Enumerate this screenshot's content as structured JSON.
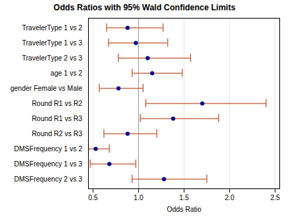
{
  "chart_data": {
    "type": "forest",
    "title": "Odds Ratios with 95% Wald Confidence Limits",
    "xlabel": "Odds Ratio",
    "xlim": [
      0.45,
      2.55
    ],
    "xticks": [
      0.5,
      {
        "value": 1.0,
        "label": "1.0"
      },
      1.5,
      {
        "value": 2.0,
        "label": "2.0"
      },
      2.5
    ],
    "grid": true,
    "orientation": "horizontal",
    "categories": [
      "TravelerType 1 vs 2",
      "TravelerType 1 vs 3",
      "TravelerType 2 vs 3",
      "age 1 vs 2",
      "gender Female vs Male",
      "Round R1 vs R2",
      "Round R1 vs R3",
      "Round R2 vs R3",
      "DMSFrequency 1 vs 2",
      "DMSFrequency 1 vs 3",
      "DMSFrequency 2 vs 3"
    ],
    "values": [
      0.88,
      0.97,
      1.1,
      1.15,
      0.78,
      1.7,
      1.38,
      0.88,
      0.53,
      0.68,
      1.28
    ],
    "color": "#00008b",
    "marker": "circle",
    "error_bars": {
      "lower": [
        0.65,
        0.67,
        0.78,
        0.93,
        0.57,
        1.08,
        1.02,
        0.62,
        0.45,
        0.47,
        0.93
      ],
      "upper": [
        1.27,
        1.32,
        1.57,
        1.48,
        1.05,
        2.4,
        1.88,
        1.2,
        0.68,
        0.97,
        1.75
      ],
      "color": "#c87050"
    },
    "reference_line": {
      "x": 1.0,
      "color": "#999999"
    }
  }
}
